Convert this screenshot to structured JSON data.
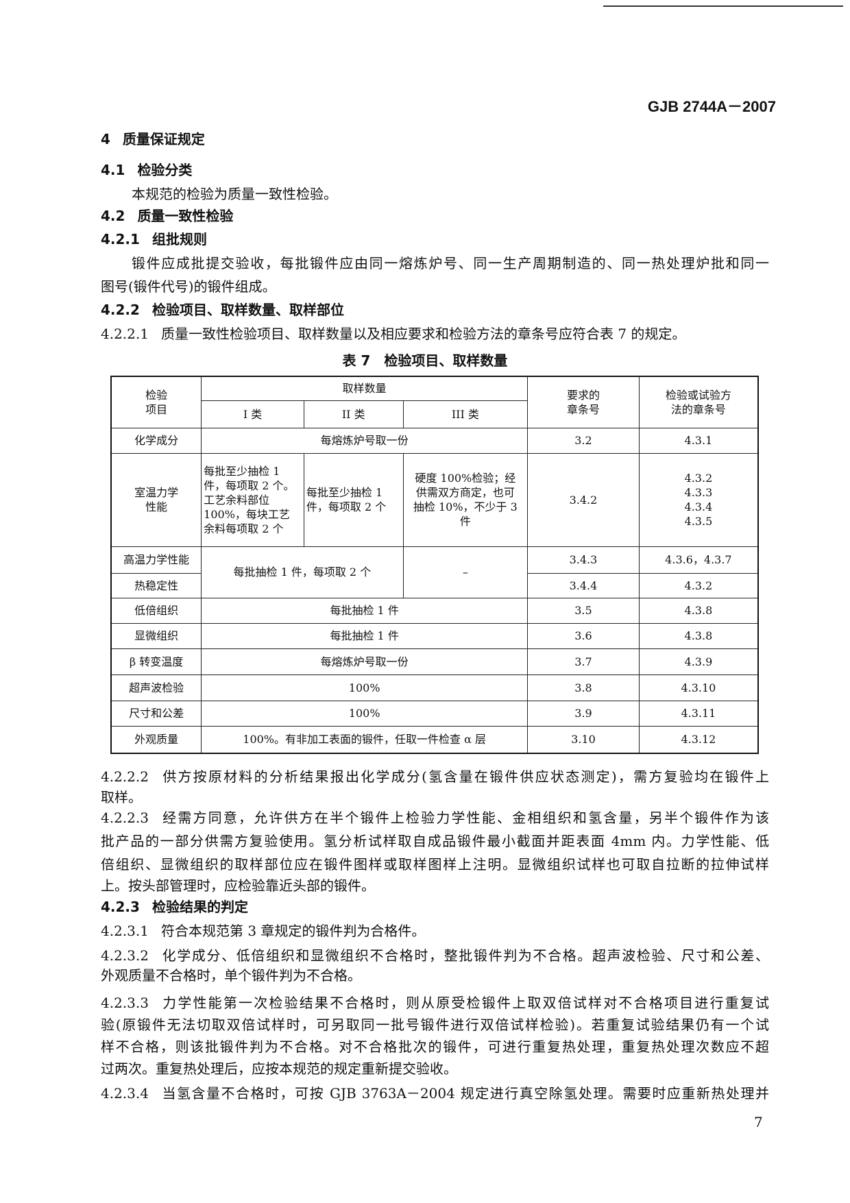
{
  "header": {
    "standard_no": "GJB 2744A－2007"
  },
  "sections": {
    "s4": {
      "num": "4",
      "title": "质量保证规定"
    },
    "s41": {
      "num": "4.1",
      "title": "检验分类",
      "body": "本规范的检验为质量一致性检验。"
    },
    "s42": {
      "num": "4.2",
      "title": "质量一致性检验"
    },
    "s421": {
      "num": "4.2.1",
      "title": "组批规则",
      "lines": [
        "锻件应成批提交验收，每批锻件应由同一熔炼炉号、同一生产周期制造的、同一热处理炉批和同一",
        "图号(锻件代号)的锻件组成。"
      ]
    },
    "s422": {
      "num": "4.2.2",
      "title": "检验项目、取样数量、取样部位"
    },
    "s4221": {
      "num": "4.2.2.1",
      "text": "质量一致性检验项目、取样数量以及相应要求和检验方法的章条号应符合表 7 的规定。"
    },
    "s4222": {
      "num": "4.2.2.2",
      "lines": [
        "供方按原材料的分析结果报出化学成分(氢含量在锻件供应状态测定)，需方复验均在锻件上",
        "取样。"
      ]
    },
    "s4223": {
      "num": "4.2.2.3",
      "lines": [
        "经需方同意，允许供方在半个锻件上检验力学性能、金相组织和氢含量，另半个锻件作为该",
        "批产品的一部分供需方复验使用。氢分析试样取自成品锻件最小截面并距表面 4mm 内。力学性能、低",
        "倍组织、显微组织的取样部位应在锻件图样或取样图样上注明。显微组织试样也可取自拉断的拉伸试样",
        "上。按头部管理时，应检验靠近头部的锻件。"
      ]
    },
    "s423": {
      "num": "4.2.3",
      "title": "检验结果的判定"
    },
    "s4231": {
      "num": "4.2.3.1",
      "text": "符合本规范第 3 章规定的锻件判为合格件。"
    },
    "s4232": {
      "num": "4.2.3.2",
      "lines": [
        "化学成分、低倍组织和显微组织不合格时，整批锻件判为不合格。超声波检验、尺寸和公差、",
        "外观质量不合格时，单个锻件判为不合格。"
      ]
    },
    "s4233": {
      "num": "4.2.3.3",
      "lines": [
        "力学性能第一次检验结果不合格时，则从原受检锻件上取双倍试样对不合格项目进行重复试",
        "验(原锻件无法切取双倍试样时，可另取同一批号锻件进行双倍试样检验)。若重复试验结果仍有一个试",
        "样不合格，则该批锻件判为不合格。对不合格批次的锻件，可进行重复热处理，重复热处理次数应不超",
        "过两次。重复热处理后，应按本规范的规定重新提交验收。"
      ]
    },
    "s4234": {
      "num": "4.2.3.4",
      "text": "当氢含量不合格时，可按 GJB 3763A－2004 规定进行真空除氢处理。需要时应重新热处理并"
    }
  },
  "table": {
    "title": "表 7　检验项目、取样数量",
    "headers": {
      "item": "检验\n项目",
      "sampling": "取样数量",
      "class1": "I 类",
      "class2": "II 类",
      "class3": "III 类",
      "req": "要求的\n章条号",
      "method": "检验或试验方\n法的章条号"
    },
    "rows": [
      {
        "item": "化学成分",
        "sampling": "每熔炼炉号取一份",
        "req": "3.2",
        "method": "4.3.1"
      },
      {
        "item": "室温力学\n性能",
        "class1": "每批至少抽检 1\n件，每项取 2 个。\n工艺余料部位\n100%，每块工艺\n余料每项取 2 个",
        "class2": "每批至少抽检 1\n件，每项取 2 个",
        "class3": "硬度 100%检验；经\n供需双方商定，也可\n抽检 10%，不少于 3\n件",
        "req": "3.4.2",
        "method": "4.3.2\n4.3.3\n4.3.4\n4.3.5"
      },
      {
        "item": "高温力学性能",
        "class12": "每批抽检 1 件，每项取 2 个",
        "class3": "–",
        "req": "3.4.3",
        "method": "4.3.6，4.3.7"
      },
      {
        "item": "热稳定性",
        "req": "3.4.4",
        "method": "4.3.2"
      },
      {
        "item": "低倍组织",
        "sampling": "每批抽检 1 件",
        "req": "3.5",
        "method": "4.3.8"
      },
      {
        "item": "显微组织",
        "sampling": "每批抽检 1 件",
        "req": "3.6",
        "method": "4.3.8"
      },
      {
        "item": "β 转变温度",
        "sampling": "每熔炼炉号取一份",
        "req": "3.7",
        "method": "4.3.9"
      },
      {
        "item": "超声波检验",
        "sampling": "100%",
        "req": "3.8",
        "method": "4.3.10"
      },
      {
        "item": "尺寸和公差",
        "sampling": "100%",
        "req": "3.9",
        "method": "4.3.11"
      },
      {
        "item": "外观质量",
        "sampling": "100%。有非加工表面的锻件，任取一件检查 α 层",
        "req": "3.10",
        "method": "4.3.12"
      }
    ]
  },
  "footer": {
    "page_number": "7"
  }
}
